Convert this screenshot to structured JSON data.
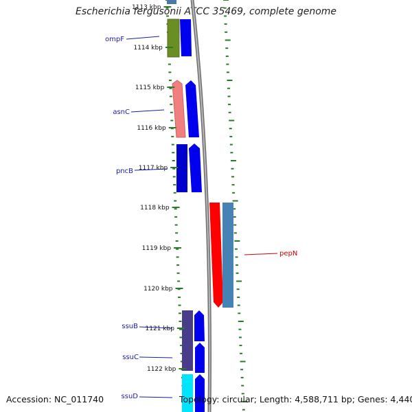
{
  "title": "Escherichia fergusonii ATCC 35469, complete genome",
  "accession": "Accession: NC_011740",
  "summary": "Topology: circular; Length: 4,588,711 bp; Genes: 4,440",
  "colors": {
    "backbone": "#888888",
    "tick": "#2a7a2a",
    "cds": "#0000ee",
    "label_blue": "#1a1aaa",
    "label_red": "#cc0000"
  },
  "kbp_labels": [
    "1113 kbp",
    "1114 kbp",
    "1115 kbp",
    "1116 kbp",
    "1117 kbp",
    "1118 kbp",
    "1119 kbp",
    "1120 kbp",
    "1121 kbp",
    "1122 kbp"
  ],
  "genes": [
    {
      "name": "ompF",
      "color": "#1a1aaa"
    },
    {
      "name": "asnC",
      "color": "#1a1aaa"
    },
    {
      "name": "pncB",
      "color": "#1a1aaa"
    },
    {
      "name": "pepN",
      "color": "#cc0000"
    },
    {
      "name": "ssuB",
      "color": "#1a1aaa"
    },
    {
      "name": "ssuC",
      "color": "#1a1aaa"
    },
    {
      "name": "ssuD",
      "color": "#1a1aaa"
    }
  ]
}
